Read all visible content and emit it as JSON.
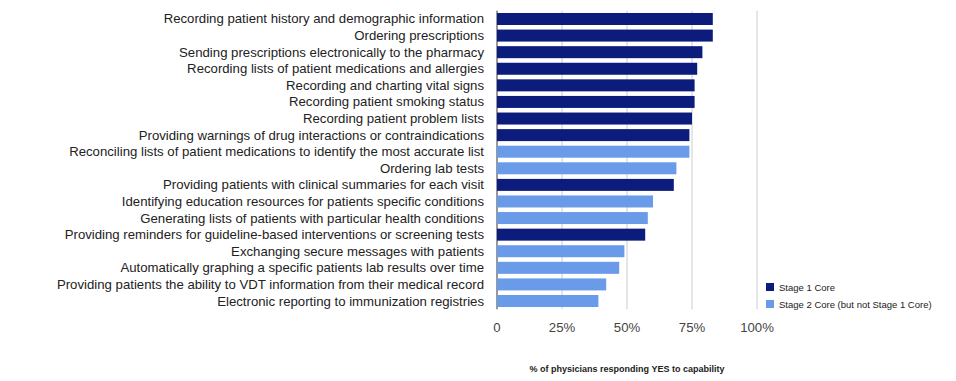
{
  "chart_data": {
    "type": "bar",
    "orientation": "horizontal",
    "stacked": true,
    "grid": true,
    "legend": "right",
    "x_label": "% of physicians responding YES to capability",
    "categories": [
      "Recording patient history and demographic information",
      "Ordering prescriptions",
      "Sending prescriptions electronically to the pharmacy",
      "Recording lists of patient medications and allergies",
      "Recording and charting vital signs",
      "Recording patient smoking status",
      "Recording patient problem lists",
      "Providing warnings of drug interactions or contraindications",
      "Reconciling lists of patient medications to identify the most accurate list",
      "Ordering lab tests",
      "Providing patients with clinical summaries for each visit",
      "Identifying education resources for patients specific conditions",
      "Generating lists of patients with particular health conditions",
      "Providing reminders for guideline-based interventions or screening tests",
      "Exchanging secure messages with patients",
      "Automatically graphing a specific patients lab results over time",
      "Providing patients the ability to VDT information from their medical record",
      "Electronic reporting to immunization registries"
    ],
    "series": [
      {
        "name": "Stage 1 Core",
        "color": "#0c1c7c",
        "values": [
          83,
          83,
          79,
          77,
          76,
          76,
          75,
          74,
          null,
          null,
          68,
          null,
          null,
          57,
          null,
          null,
          null,
          null
        ]
      },
      {
        "name": "Stage 2 Core (but not Stage 1 Core)",
        "color": "#6a9be8",
        "values": [
          null,
          null,
          null,
          null,
          null,
          null,
          null,
          null,
          74,
          69,
          null,
          60,
          58,
          null,
          49,
          47,
          42,
          39
        ]
      }
    ],
    "xlim": [
      0,
      100
    ],
    "xticks": [
      0,
      {
        "value": 25,
        "label": "25%"
      },
      {
        "value": 50,
        "label": "50%"
      },
      {
        "value": 75,
        "label": "75%"
      },
      {
        "value": 100,
        "label": "100%"
      }
    ]
  }
}
